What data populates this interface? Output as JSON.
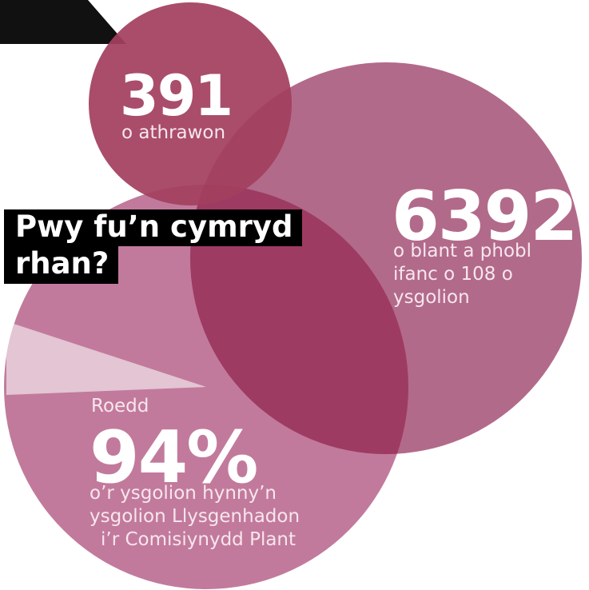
{
  "heading": {
    "line1": "Pwy fu’n cymryd",
    "line2": "rhan?"
  },
  "stats": {
    "teachers": {
      "number": "391",
      "label": "o athrawon"
    },
    "pupils": {
      "number": "6392",
      "label": "o blant a phobl ifanc o 108 o ysgolion"
    },
    "schools": {
      "prefix": "Roedd",
      "number": "94%",
      "label_line1": "o’r ysgolion hynny’n",
      "label_line2": "ysgolion Llysgenhadon",
      "label_line3": "i’r Comisiynydd Plant"
    }
  },
  "colors": {
    "circle_small": "#a2405f",
    "circle_large": "#b16587",
    "circle_bottom": "#c27a9c",
    "overlap": "#9e3b62",
    "pie_slice": "#e3c5d3",
    "heading_bg": "#000000"
  },
  "pie": {
    "share_percent": 94
  }
}
